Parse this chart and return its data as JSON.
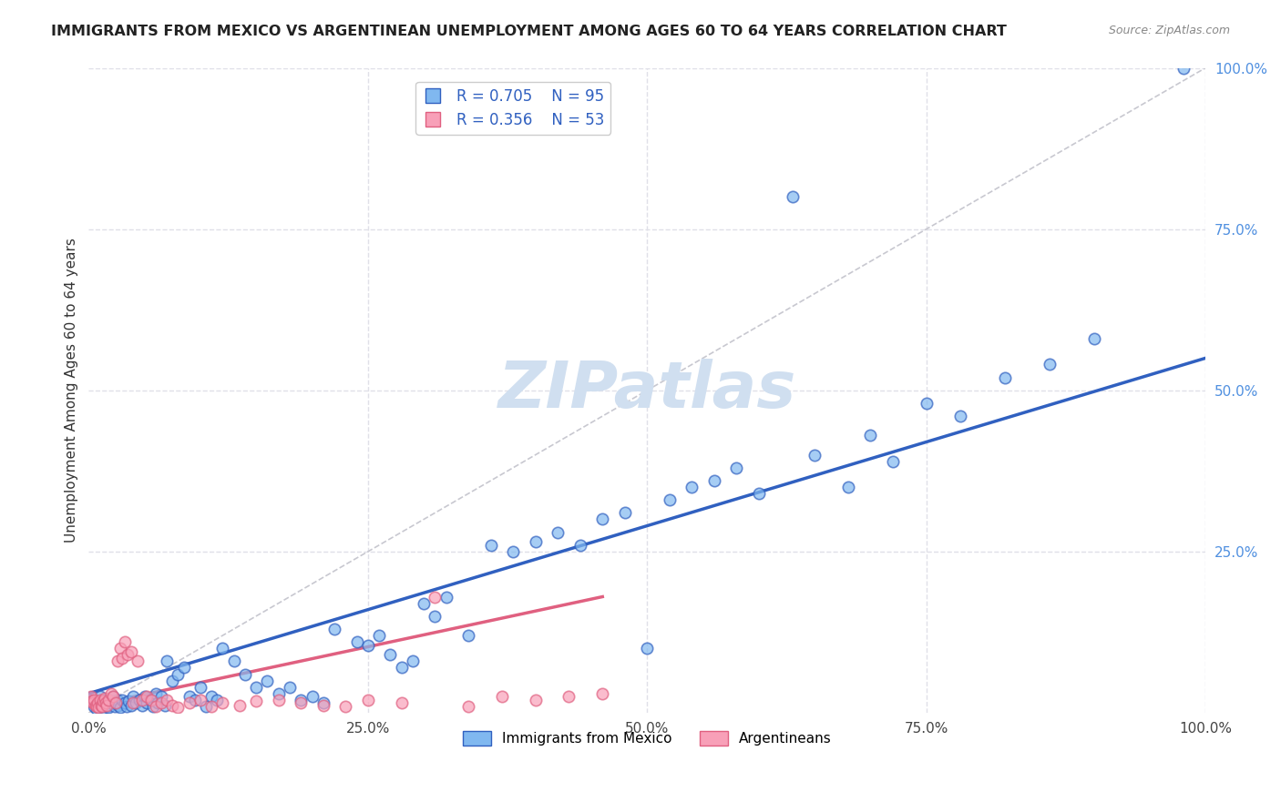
{
  "title": "IMMIGRANTS FROM MEXICO VS ARGENTINEAN UNEMPLOYMENT AMONG AGES 60 TO 64 YEARS CORRELATION CHART",
  "source": "Source: ZipAtlas.com",
  "xlabel": "",
  "ylabel": "Unemployment Among Ages 60 to 64 years",
  "xlim": [
    0,
    1.0
  ],
  "ylim": [
    0,
    1.0
  ],
  "xtick_labels": [
    "0.0%",
    "25.0%",
    "50.0%",
    "75.0%",
    "100.0%"
  ],
  "xtick_vals": [
    0.0,
    0.25,
    0.5,
    0.75,
    1.0
  ],
  "ytick_labels_right": [
    "100.0%",
    "75.0%",
    "50.0%",
    "25.0%"
  ],
  "ytick_vals_right": [
    1.0,
    0.75,
    0.5,
    0.25
  ],
  "legend_label1": "Immigrants from Mexico",
  "legend_label2": "Argentineans",
  "R1": "0.705",
  "N1": "95",
  "R2": "0.356",
  "N2": "53",
  "scatter_blue_x": [
    0.003,
    0.005,
    0.006,
    0.007,
    0.008,
    0.009,
    0.01,
    0.011,
    0.012,
    0.013,
    0.014,
    0.015,
    0.016,
    0.017,
    0.018,
    0.019,
    0.02,
    0.022,
    0.023,
    0.025,
    0.026,
    0.027,
    0.028,
    0.03,
    0.032,
    0.034,
    0.036,
    0.038,
    0.04,
    0.042,
    0.045,
    0.048,
    0.05,
    0.052,
    0.055,
    0.058,
    0.06,
    0.062,
    0.065,
    0.068,
    0.07,
    0.075,
    0.08,
    0.085,
    0.09,
    0.095,
    0.1,
    0.105,
    0.11,
    0.115,
    0.12,
    0.13,
    0.14,
    0.15,
    0.16,
    0.17,
    0.18,
    0.19,
    0.2,
    0.21,
    0.22,
    0.24,
    0.25,
    0.26,
    0.27,
    0.28,
    0.29,
    0.3,
    0.31,
    0.32,
    0.34,
    0.36,
    0.38,
    0.4,
    0.42,
    0.44,
    0.46,
    0.48,
    0.5,
    0.52,
    0.54,
    0.56,
    0.58,
    0.6,
    0.63,
    0.65,
    0.68,
    0.7,
    0.72,
    0.75,
    0.78,
    0.82,
    0.86,
    0.9,
    0.98
  ],
  "scatter_blue_y": [
    0.02,
    0.01,
    0.015,
    0.005,
    0.012,
    0.008,
    0.025,
    0.01,
    0.018,
    0.007,
    0.02,
    0.015,
    0.01,
    0.012,
    0.008,
    0.02,
    0.015,
    0.025,
    0.01,
    0.015,
    0.02,
    0.012,
    0.008,
    0.02,
    0.015,
    0.01,
    0.018,
    0.012,
    0.025,
    0.015,
    0.02,
    0.012,
    0.025,
    0.015,
    0.02,
    0.01,
    0.03,
    0.015,
    0.025,
    0.012,
    0.08,
    0.05,
    0.06,
    0.07,
    0.025,
    0.02,
    0.04,
    0.01,
    0.025,
    0.02,
    0.1,
    0.08,
    0.06,
    0.04,
    0.05,
    0.03,
    0.04,
    0.02,
    0.025,
    0.015,
    0.13,
    0.11,
    0.105,
    0.12,
    0.09,
    0.07,
    0.08,
    0.17,
    0.15,
    0.18,
    0.12,
    0.26,
    0.25,
    0.265,
    0.28,
    0.26,
    0.3,
    0.31,
    0.1,
    0.33,
    0.35,
    0.36,
    0.38,
    0.34,
    0.8,
    0.4,
    0.35,
    0.43,
    0.39,
    0.48,
    0.46,
    0.52,
    0.54,
    0.58,
    1.0
  ],
  "scatter_pink_x": [
    0.002,
    0.003,
    0.004,
    0.005,
    0.006,
    0.007,
    0.008,
    0.009,
    0.01,
    0.011,
    0.012,
    0.013,
    0.014,
    0.015,
    0.016,
    0.018,
    0.02,
    0.022,
    0.024,
    0.026,
    0.028,
    0.03,
    0.032,
    0.035,
    0.038,
    0.04,
    0.044,
    0.048,
    0.052,
    0.056,
    0.06,
    0.065,
    0.07,
    0.075,
    0.08,
    0.09,
    0.1,
    0.11,
    0.12,
    0.135,
    0.15,
    0.17,
    0.19,
    0.21,
    0.23,
    0.25,
    0.28,
    0.31,
    0.34,
    0.37,
    0.4,
    0.43,
    0.46
  ],
  "scatter_pink_y": [
    0.025,
    0.018,
    0.015,
    0.02,
    0.012,
    0.01,
    0.015,
    0.008,
    0.02,
    0.012,
    0.01,
    0.018,
    0.022,
    0.015,
    0.012,
    0.02,
    0.03,
    0.025,
    0.015,
    0.08,
    0.1,
    0.085,
    0.11,
    0.09,
    0.095,
    0.015,
    0.08,
    0.02,
    0.025,
    0.02,
    0.01,
    0.015,
    0.02,
    0.012,
    0.008,
    0.015,
    0.02,
    0.01,
    0.015,
    0.012,
    0.018,
    0.02,
    0.015,
    0.012,
    0.01,
    0.02,
    0.015,
    0.18,
    0.01,
    0.025,
    0.02,
    0.025,
    0.03
  ],
  "blue_line_x": [
    0.0,
    1.0
  ],
  "blue_line_y": [
    0.03,
    0.55
  ],
  "pink_line_x": [
    0.0,
    0.46
  ],
  "pink_line_y": [
    0.01,
    0.18
  ],
  "diag_line_x": [
    0.0,
    1.0
  ],
  "diag_line_y": [
    0.0,
    1.0
  ],
  "color_blue": "#80b8f0",
  "color_pink": "#f8a0b8",
  "color_blue_line": "#3060c0",
  "color_pink_line": "#e06080",
  "color_diag": "#c8c8d0",
  "watermark": "ZIPatlas",
  "watermark_color": "#d0dff0",
  "grid_color": "#e0e0e8",
  "axis_right_color": "#5090e0",
  "background_color": "#ffffff"
}
